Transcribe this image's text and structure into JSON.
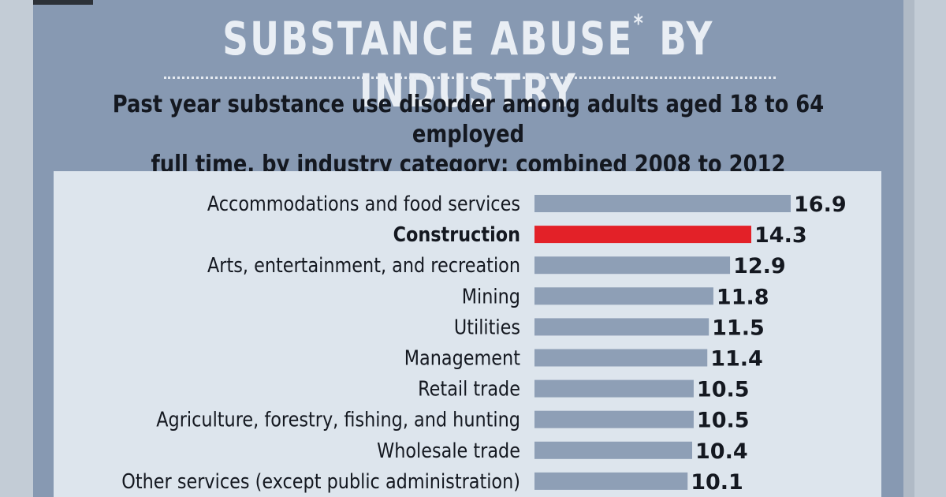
{
  "header": {
    "title": "SUBSTANCE ABUSE",
    "title_mark": "*",
    "title_suffix": " BY INDUSTRY",
    "subtitle_line1": "Past year substance use disorder among adults aged 18 to 64 employed",
    "subtitle_line2": "full time, by industry category: combined 2008 to 2012"
  },
  "colors": {
    "background": "#8799b2",
    "panel": "#dde5ed",
    "bar": "#8e9fb6",
    "highlight_bar": "#e32128",
    "text": "#141820",
    "title": "#e9eef4"
  },
  "chart_data": {
    "type": "bar",
    "orientation": "horizontal",
    "categories": [
      "Accommodations and food services",
      "Construction",
      "Arts, entertainment, and recreation",
      "Mining",
      "Utilities",
      "Management",
      "Retail trade",
      "Agriculture, forestry, fishing, and hunting",
      "Wholesale trade",
      "Other services (except public administration)"
    ],
    "values": [
      16.9,
      14.3,
      12.9,
      11.8,
      11.5,
      11.4,
      10.5,
      10.5,
      10.4,
      10.1
    ],
    "value_labels": [
      "16.9",
      "14.3",
      "12.9",
      "11.8",
      "11.5",
      "11.4",
      "10.5",
      "10.5",
      "10.4",
      "10.1"
    ],
    "highlight": "Construction",
    "xlim": [
      0,
      16.9
    ],
    "grid": false,
    "legend": "none"
  }
}
